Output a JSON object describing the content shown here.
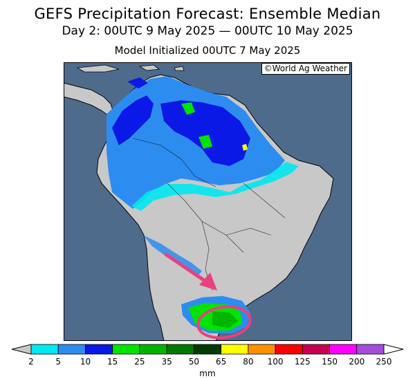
{
  "header": {
    "title": "GEFS Precipitation Forecast: Ensemble Median",
    "period": "Day 2: 00UTC 9 May 2025 — 00UTC 10 May 2025",
    "init": "Model Initialized 00UTC 7 May 2025"
  },
  "credit": "©World Ag Weather",
  "colors": {
    "ocean": "#4e6b8c",
    "land": "#c8c8c8",
    "border": "#000000",
    "annotation": "#e8417e"
  },
  "legend": {
    "unit": "mm",
    "levels": [
      "2",
      "5",
      "10",
      "15",
      "25",
      "35",
      "50",
      "65",
      "80",
      "100",
      "125",
      "150",
      "200",
      "250"
    ],
    "colors": [
      "#00e8f0",
      "#2d8cf0",
      "#0a19e6",
      "#00e400",
      "#00b400",
      "#007800",
      "#003c00",
      "#ffff00",
      "#ff9100",
      "#ff0000",
      "#c80050",
      "#ff00ff",
      "#a34dd8"
    ]
  }
}
